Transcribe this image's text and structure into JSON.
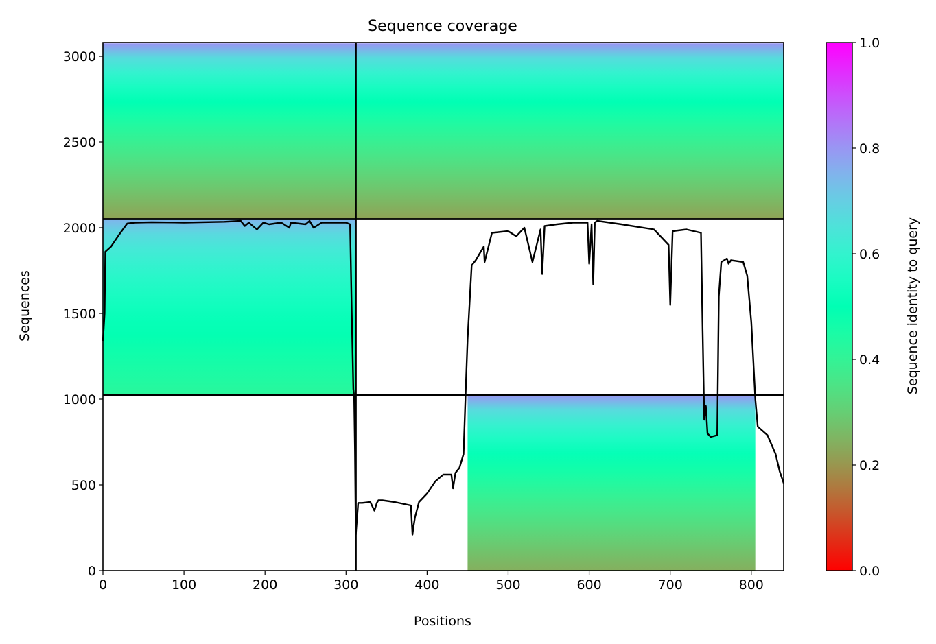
{
  "chart_data": {
    "type": "heatmap",
    "title": "Sequence coverage",
    "xlabel": "Positions",
    "ylabel": "Sequences",
    "xlim": [
      0,
      840
    ],
    "ylim": [
      0,
      3080
    ],
    "xticks": [
      0,
      100,
      200,
      300,
      400,
      500,
      600,
      700,
      800
    ],
    "yticks": [
      0,
      500,
      1000,
      1500,
      2000,
      2500,
      3000
    ],
    "colorbar": {
      "label": "Sequence identity to query",
      "range": [
        0,
        1
      ],
      "ticks": [
        "0.0",
        "0.2",
        "0.4",
        "0.6",
        "0.8",
        "1.0"
      ],
      "colormap": "rainbow_r"
    },
    "divider_positions": [
      312
    ],
    "divider_sequences": [
      1025,
      2050
    ],
    "blocks": [
      {
        "name": "block-A",
        "x": [
          0,
          312
        ],
        "y": [
          2050,
          3075
        ],
        "coverage_region": [
          0,
          312
        ],
        "identity_top": 0.8,
        "identity_bottom": 0.22
      },
      {
        "name": "block-B",
        "x": [
          0,
          312
        ],
        "y": [
          1025,
          2050
        ],
        "coverage_region": [
          0,
          312
        ],
        "identity_top": 0.75,
        "identity_bottom": 0.42
      },
      {
        "name": "block-C",
        "x": [
          312,
          840
        ],
        "y": [
          2050,
          3075
        ],
        "coverage_region": [
          312,
          840
        ],
        "identity_top": 0.8,
        "identity_bottom": 0.22
      },
      {
        "name": "block-D",
        "x": [
          312,
          840
        ],
        "y": [
          0,
          1025
        ],
        "coverage_region": [
          450,
          805
        ],
        "identity_top": 0.8,
        "identity_bottom": 0.24
      }
    ],
    "coverage_line": {
      "x": [
        0,
        2,
        3,
        10,
        20,
        30,
        40,
        60,
        100,
        150,
        170,
        175,
        180,
        190,
        198,
        205,
        220,
        230,
        232,
        250,
        255,
        260,
        270,
        300,
        305,
        307,
        309,
        310,
        311,
        312,
        315,
        320,
        330,
        335,
        338,
        340,
        345,
        360,
        380,
        382,
        383,
        385,
        390,
        400,
        410,
        420,
        430,
        432,
        435,
        440,
        445,
        448,
        450,
        455,
        460,
        470,
        471,
        480,
        500,
        510,
        520,
        530,
        540,
        542,
        545,
        560,
        580,
        598,
        600,
        603,
        605,
        607,
        610,
        640,
        680,
        698,
        700,
        703,
        720,
        738,
        740,
        742,
        744,
        746,
        750,
        758,
        760,
        763,
        770,
        772,
        775,
        790,
        795,
        800,
        805,
        808,
        820,
        830,
        835,
        840
      ],
      "y": [
        1340,
        1500,
        1860,
        1890,
        1960,
        2025,
        2030,
        2032,
        2030,
        2035,
        2040,
        2010,
        2030,
        1990,
        2030,
        2020,
        2030,
        2000,
        2030,
        2020,
        2040,
        2000,
        2030,
        2030,
        2020,
        1500,
        1060,
        1020,
        700,
        210,
        395,
        395,
        400,
        350,
        395,
        410,
        410,
        400,
        380,
        210,
        250,
        310,
        400,
        450,
        520,
        560,
        560,
        480,
        570,
        600,
        680,
        1100,
        1350,
        1780,
        1810,
        1890,
        1800,
        1970,
        1980,
        1950,
        2000,
        1800,
        1990,
        1730,
        2010,
        2020,
        2030,
        2030,
        1790,
        2020,
        1670,
        2030,
        2040,
        2020,
        1990,
        1900,
        1550,
        1980,
        1990,
        1970,
        1400,
        880,
        960,
        800,
        780,
        790,
        1600,
        1800,
        1820,
        1790,
        1810,
        1800,
        1720,
        1450,
        1000,
        840,
        790,
        680,
        580,
        510
      ]
    }
  }
}
